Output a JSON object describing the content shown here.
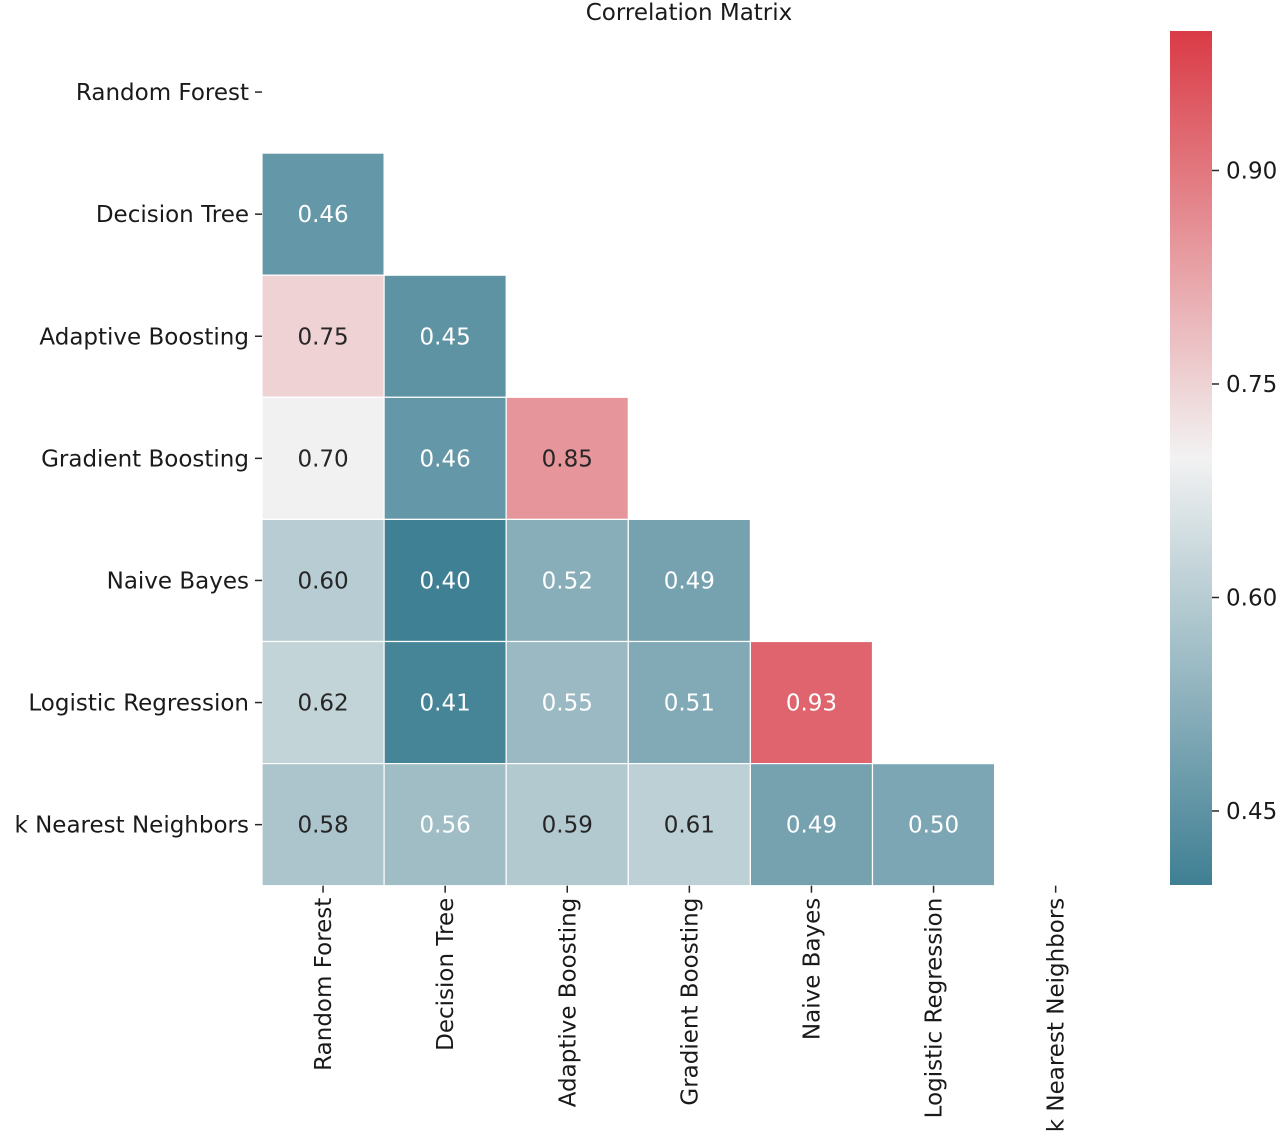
{
  "chart_data": {
    "type": "heatmap",
    "title": "Correlation Matrix",
    "xlabel": "",
    "ylabel": "",
    "row_labels": [
      "Random Forest",
      "Decision Tree",
      "Adaptive Boosting",
      "Gradient Boosting",
      "Naive Bayes",
      "Logistic Regression",
      "k Nearest Neighbors"
    ],
    "col_labels": [
      "Random Forest",
      "Decision Tree",
      "Adaptive Boosting",
      "Gradient Boosting",
      "Naive Bayes",
      "Logistic Regression",
      "k Nearest Neighbors"
    ],
    "values": [
      [
        null,
        null,
        null,
        null,
        null,
        null,
        null
      ],
      [
        0.46,
        null,
        null,
        null,
        null,
        null,
        null
      ],
      [
        0.75,
        0.45,
        null,
        null,
        null,
        null,
        null
      ],
      [
        0.7,
        0.46,
        0.85,
        null,
        null,
        null,
        null
      ],
      [
        0.6,
        0.4,
        0.52,
        0.49,
        null,
        null,
        null
      ],
      [
        0.62,
        0.41,
        0.55,
        0.51,
        0.93,
        null,
        null
      ],
      [
        0.58,
        0.56,
        0.59,
        0.61,
        0.49,
        0.5,
        null
      ]
    ],
    "mask": "upper triangle including diagonal",
    "value_format": "0.00",
    "colorbar": {
      "vmin": 0.398,
      "vmax": 0.998,
      "ticks": [
        0.45,
        0.6,
        0.75,
        0.9
      ],
      "tick_labels": [
        "0.45",
        "0.60",
        "0.75",
        "0.90"
      ],
      "colormap": "diverging teal-white-red",
      "low_color": "#3f7f93",
      "mid_color": "#f2f2f2",
      "high_color": "#da3b46"
    }
  }
}
